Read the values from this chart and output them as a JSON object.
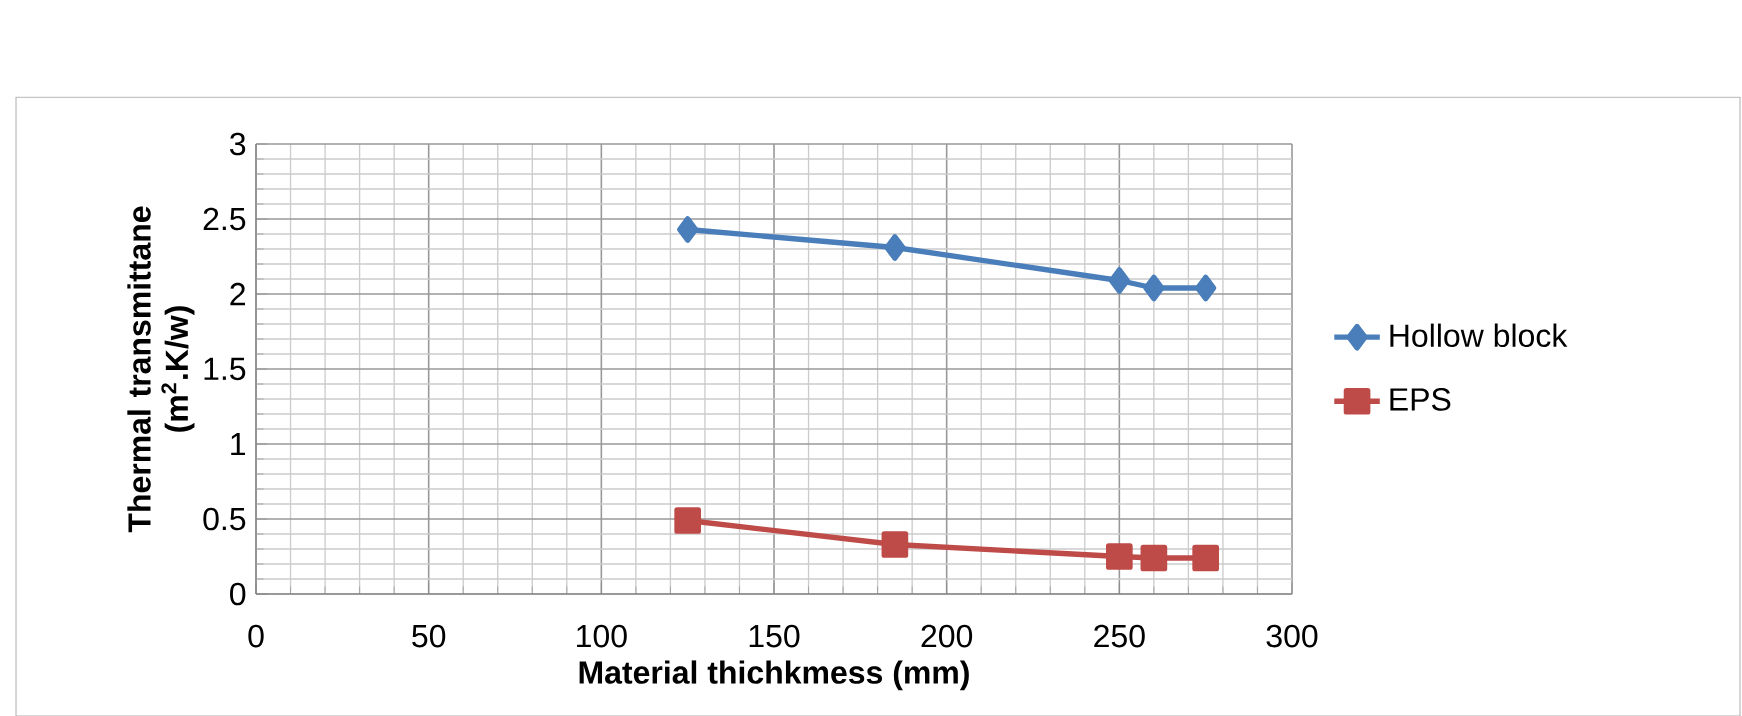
{
  "chart_data": {
    "type": "line",
    "xlabel": "Material thichkmess (mm)",
    "ylabel": "Thermal transmittane (m$^{2}$.K/w)",
    "xlim": [
      0,
      300
    ],
    "xticks": [
      0,
      50,
      100,
      150,
      200,
      250,
      300
    ],
    "ylim": [
      0,
      3
    ],
    "yticks": [
      0,
      0.5,
      1,
      1.5,
      2,
      2.5,
      3
    ],
    "grid": true,
    "legend": "right",
    "line_style": "solid",
    "series": [
      {
        "name": "Hollow block",
        "color": "#4a7ebb",
        "marker": "diamond",
        "x": [
          125,
          185,
          250,
          260,
          275
        ],
        "values": [
          2.43,
          2.31,
          2.09,
          2.04,
          2.04
        ]
      },
      {
        "name": "EPS",
        "color": "#be4b48",
        "marker": "square",
        "x": [
          125,
          185,
          250,
          260,
          275
        ],
        "values": [
          0.49,
          0.33,
          0.25,
          0.24,
          0.24
        ]
      }
    ]
  }
}
